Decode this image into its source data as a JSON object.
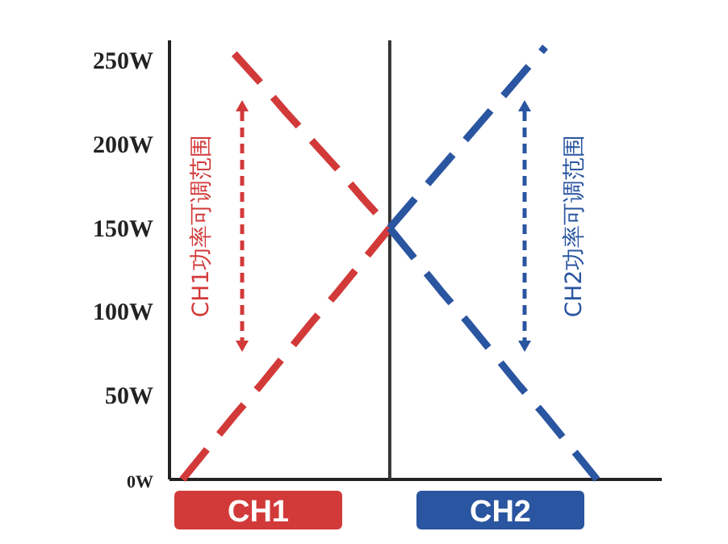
{
  "chart_data": {
    "type": "line",
    "ylim": [
      0,
      262
    ],
    "categories": [
      null,
      null,
      null,
      null,
      null,
      null,
      null,
      null,
      null,
      null,
      null,
      null,
      null,
      null,
      null,
      null,
      null,
      null,
      null
    ],
    "yticks": [
      {
        "value": 0,
        "label": "0W"
      },
      {
        "value": 50,
        "label": "50W"
      },
      {
        "value": 100,
        "label": "100W"
      },
      {
        "value": 150,
        "label": "150W"
      },
      {
        "value": 200,
        "label": "200W"
      },
      {
        "value": 250,
        "label": "250W"
      }
    ],
    "tick_labels": "y",
    "grid": false,
    "line_style": "dashed",
    "marker": "none",
    "series": [
      {
        "color": "#d23a3a",
        "values": [
          0,
          19,
          38,
          56,
          75,
          94,
          112,
          131,
          150,
          null,
          null,
          null,
          null,
          null,
          null,
          null,
          null,
          null,
          null
        ]
      },
      {
        "color": "#d23a3a",
        "values": [
          null,
          null,
          254,
          237,
          219,
          202,
          185,
          167,
          150,
          null,
          null,
          null,
          null,
          null,
          null,
          null,
          null,
          null,
          null
        ]
      },
      {
        "color": "#2a55a0",
        "values": [
          null,
          null,
          null,
          null,
          null,
          null,
          null,
          null,
          150,
          168,
          186,
          204,
          222,
          240,
          258,
          null,
          null,
          null,
          null
        ]
      },
      {
        "color": "#2a55a0",
        "values": [
          null,
          null,
          null,
          null,
          null,
          null,
          null,
          null,
          150,
          131,
          112,
          94,
          75,
          56,
          38,
          19,
          0,
          null,
          null
        ]
      }
    ],
    "annotations": [
      "CH1功率可调范围",
      "CH2功率可调范围",
      "CH1",
      "CH2"
    ]
  }
}
